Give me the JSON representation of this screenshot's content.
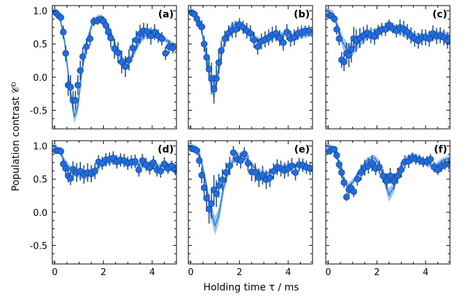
{
  "figure": {
    "ylabel": "Population contrast 𝒞ᴰ",
    "xlabel": "Holding time τ / ms",
    "colors": {
      "marker": "#1e6ee6",
      "marker_edge": "#1b4f9c",
      "errorbar": "#1f4e8f",
      "band": "#8fb6f2",
      "fit": "#2a7de1"
    },
    "yticks": [
      "1.0",
      "0.5",
      "0.0",
      "-0.5"
    ],
    "xticks": [
      "0",
      "2",
      "4"
    ]
  },
  "chart_data": [
    {
      "type": "scatter",
      "panel": "(a)",
      "xlim": [
        -0.1,
        5.0
      ],
      "ylim": [
        -0.78,
        1.08
      ],
      "x": [
        0.05,
        0.15,
        0.25,
        0.35,
        0.45,
        0.55,
        0.65,
        0.75,
        0.85,
        0.95,
        1.05,
        1.15,
        1.3,
        1.45,
        1.6,
        1.75,
        1.9,
        2.0,
        2.1,
        2.2,
        2.3,
        2.45,
        2.6,
        2.75,
        2.9,
        3.05,
        3.2,
        3.35,
        3.5,
        3.65,
        3.8,
        3.95,
        4.1,
        4.25,
        4.4,
        4.55,
        4.7,
        4.85
      ],
      "y": [
        0.97,
        0.93,
        0.9,
        0.68,
        0.36,
        -0.12,
        -0.15,
        -0.35,
        -0.35,
        -0.12,
        0.1,
        0.31,
        0.46,
        0.58,
        0.84,
        0.85,
        0.87,
        0.84,
        0.78,
        0.68,
        0.59,
        0.43,
        0.37,
        0.23,
        0.16,
        0.26,
        0.44,
        0.56,
        0.65,
        0.7,
        0.69,
        0.62,
        0.68,
        0.62,
        0.58,
        0.36,
        0.46,
        0.44
      ],
      "err": [
        0.05,
        0.05,
        0.06,
        0.1,
        0.12,
        0.16,
        0.18,
        0.14,
        0.14,
        0.15,
        0.15,
        0.14,
        0.12,
        0.1,
        0.07,
        0.06,
        0.06,
        0.07,
        0.1,
        0.12,
        0.14,
        0.15,
        0.16,
        0.17,
        0.16,
        0.16,
        0.15,
        0.14,
        0.14,
        0.12,
        0.12,
        0.13,
        0.12,
        0.1,
        0.1,
        0.1,
        0.1,
        0.08
      ],
      "fit": [
        [
          0,
          1.0
        ],
        [
          0.2,
          0.92
        ],
        [
          0.4,
          0.55
        ],
        [
          0.6,
          -0.1
        ],
        [
          0.8,
          -0.6
        ],
        [
          0.95,
          -0.45
        ],
        [
          1.1,
          0.05
        ],
        [
          1.3,
          0.5
        ],
        [
          1.55,
          0.82
        ],
        [
          1.8,
          0.91
        ],
        [
          2.05,
          0.87
        ],
        [
          2.3,
          0.68
        ],
        [
          2.55,
          0.42
        ],
        [
          2.8,
          0.24
        ],
        [
          3.0,
          0.22
        ],
        [
          3.25,
          0.36
        ],
        [
          3.5,
          0.55
        ],
        [
          3.8,
          0.66
        ],
        [
          4.1,
          0.67
        ],
        [
          4.4,
          0.61
        ],
        [
          4.7,
          0.52
        ],
        [
          5.0,
          0.46
        ]
      ],
      "band": [
        [
          0,
          0.04
        ],
        [
          0.4,
          0.07
        ],
        [
          0.6,
          0.1
        ],
        [
          0.8,
          0.1
        ],
        [
          1.0,
          0.09
        ],
        [
          1.3,
          0.07
        ],
        [
          1.8,
          0.04
        ],
        [
          2.3,
          0.05
        ],
        [
          2.8,
          0.06
        ],
        [
          3.5,
          0.05
        ],
        [
          5.0,
          0.04
        ]
      ]
    },
    {
      "type": "scatter",
      "panel": "(b)",
      "xlim": [
        -0.1,
        5.0
      ],
      "ylim": [
        -0.78,
        1.08
      ],
      "x": [
        0.05,
        0.15,
        0.25,
        0.35,
        0.45,
        0.55,
        0.65,
        0.75,
        0.85,
        0.95,
        1.05,
        1.15,
        1.25,
        1.4,
        1.55,
        1.7,
        1.85,
        2.0,
        2.15,
        2.3,
        2.45,
        2.6,
        2.75,
        2.9,
        3.05,
        3.2,
        3.35,
        3.5,
        3.65,
        3.8,
        3.95,
        4.1,
        4.25,
        4.4,
        4.55,
        4.7,
        4.85
      ],
      "y": [
        0.97,
        0.95,
        0.88,
        0.8,
        0.76,
        0.5,
        0.3,
        0.12,
        -0.02,
        -0.18,
        -0.02,
        0.22,
        0.4,
        0.58,
        0.66,
        0.71,
        0.72,
        0.79,
        0.75,
        0.7,
        0.66,
        0.56,
        0.46,
        0.54,
        0.57,
        0.6,
        0.64,
        0.66,
        0.59,
        0.52,
        0.68,
        0.58,
        0.6,
        0.66,
        0.68,
        0.7,
        0.7
      ],
      "err": [
        0.05,
        0.05,
        0.07,
        0.08,
        0.1,
        0.12,
        0.15,
        0.18,
        0.24,
        0.22,
        0.2,
        0.17,
        0.15,
        0.12,
        0.12,
        0.12,
        0.12,
        0.1,
        0.1,
        0.12,
        0.12,
        0.12,
        0.12,
        0.12,
        0.12,
        0.12,
        0.12,
        0.12,
        0.12,
        0.12,
        0.12,
        0.12,
        0.12,
        0.1,
        0.1,
        0.08,
        0.08
      ],
      "fit": [
        [
          0,
          0.99
        ],
        [
          0.2,
          0.95
        ],
        [
          0.4,
          0.78
        ],
        [
          0.6,
          0.42
        ],
        [
          0.8,
          -0.05
        ],
        [
          0.95,
          -0.22
        ],
        [
          1.1,
          0.02
        ],
        [
          1.3,
          0.42
        ],
        [
          1.55,
          0.7
        ],
        [
          1.8,
          0.8
        ],
        [
          2.05,
          0.8
        ],
        [
          2.3,
          0.72
        ],
        [
          2.6,
          0.6
        ],
        [
          2.9,
          0.54
        ],
        [
          3.2,
          0.56
        ],
        [
          3.5,
          0.62
        ],
        [
          3.8,
          0.65
        ],
        [
          4.1,
          0.64
        ],
        [
          4.4,
          0.62
        ],
        [
          4.7,
          0.63
        ],
        [
          5.0,
          0.66
        ]
      ],
      "band": [
        [
          0,
          0.04
        ],
        [
          0.4,
          0.06
        ],
        [
          0.7,
          0.1
        ],
        [
          0.95,
          0.13
        ],
        [
          1.2,
          0.1
        ],
        [
          1.6,
          0.06
        ],
        [
          2.2,
          0.04
        ],
        [
          3.0,
          0.04
        ],
        [
          5.0,
          0.04
        ]
      ]
    },
    {
      "type": "scatter",
      "panel": "(c)",
      "xlim": [
        -0.1,
        5.0
      ],
      "ylim": [
        -0.78,
        1.08
      ],
      "x": [
        0.05,
        0.15,
        0.25,
        0.35,
        0.45,
        0.55,
        0.65,
        0.75,
        0.85,
        0.95,
        1.05,
        1.15,
        1.3,
        1.45,
        1.6,
        1.75,
        1.9,
        2.05,
        2.2,
        2.35,
        2.5,
        2.65,
        2.8,
        2.95,
        3.1,
        3.25,
        3.4,
        3.55,
        3.7,
        3.85,
        4.0,
        4.15,
        4.3,
        4.45,
        4.6,
        4.75,
        4.9
      ],
      "y": [
        0.93,
        0.92,
        0.88,
        0.72,
        0.58,
        0.26,
        0.23,
        0.36,
        0.33,
        0.42,
        0.58,
        0.55,
        0.59,
        0.63,
        0.67,
        0.63,
        0.61,
        0.68,
        0.72,
        0.72,
        0.79,
        0.74,
        0.7,
        0.75,
        0.73,
        0.68,
        0.63,
        0.58,
        0.55,
        0.6,
        0.6,
        0.58,
        0.66,
        0.62,
        0.63,
        0.6,
        0.55
      ],
      "err": [
        0.05,
        0.05,
        0.06,
        0.08,
        0.1,
        0.12,
        0.14,
        0.16,
        0.18,
        0.2,
        0.18,
        0.17,
        0.15,
        0.13,
        0.12,
        0.12,
        0.12,
        0.11,
        0.1,
        0.1,
        0.08,
        0.08,
        0.1,
        0.12,
        0.12,
        0.12,
        0.12,
        0.12,
        0.12,
        0.12,
        0.12,
        0.12,
        0.12,
        0.12,
        0.12,
        0.12,
        0.12
      ],
      "fit": [
        [
          0,
          1.0
        ],
        [
          0.2,
          0.95
        ],
        [
          0.4,
          0.75
        ],
        [
          0.6,
          0.52
        ],
        [
          0.8,
          0.4
        ],
        [
          1.0,
          0.42
        ],
        [
          1.25,
          0.52
        ],
        [
          1.5,
          0.6
        ],
        [
          1.8,
          0.66
        ],
        [
          2.1,
          0.71
        ],
        [
          2.4,
          0.74
        ],
        [
          2.7,
          0.73
        ],
        [
          3.0,
          0.68
        ],
        [
          3.3,
          0.63
        ],
        [
          3.6,
          0.6
        ],
        [
          3.9,
          0.6
        ],
        [
          4.2,
          0.62
        ],
        [
          4.5,
          0.63
        ],
        [
          4.8,
          0.62
        ],
        [
          5.0,
          0.61
        ]
      ],
      "band": [
        [
          0,
          0.04
        ],
        [
          0.5,
          0.08
        ],
        [
          0.8,
          0.11
        ],
        [
          1.1,
          0.09
        ],
        [
          1.6,
          0.06
        ],
        [
          2.5,
          0.05
        ],
        [
          3.5,
          0.06
        ],
        [
          5.0,
          0.07
        ]
      ]
    },
    {
      "type": "scatter",
      "panel": "(d)",
      "xlim": [
        -0.1,
        5.0
      ],
      "ylim": [
        -0.78,
        1.08
      ],
      "x": [
        0.05,
        0.15,
        0.25,
        0.35,
        0.45,
        0.55,
        0.65,
        0.75,
        0.9,
        1.05,
        1.2,
        1.35,
        1.5,
        1.65,
        1.8,
        1.95,
        2.1,
        2.25,
        2.4,
        2.55,
        2.7,
        2.85,
        3.0,
        3.15,
        3.3,
        3.45,
        3.6,
        3.75,
        3.9,
        4.05,
        4.2,
        4.35,
        4.5,
        4.65,
        4.8,
        4.95
      ],
      "y": [
        0.93,
        0.93,
        0.92,
        0.73,
        0.66,
        0.55,
        0.51,
        0.65,
        0.6,
        0.62,
        0.57,
        0.6,
        0.58,
        0.62,
        0.76,
        0.74,
        0.79,
        0.8,
        0.82,
        0.76,
        0.79,
        0.78,
        0.74,
        0.76,
        0.77,
        0.64,
        0.78,
        0.72,
        0.67,
        0.75,
        0.64,
        0.62,
        0.73,
        0.66,
        0.7,
        0.64
      ],
      "err": [
        0.04,
        0.04,
        0.06,
        0.08,
        0.1,
        0.1,
        0.1,
        0.12,
        0.14,
        0.14,
        0.14,
        0.14,
        0.13,
        0.12,
        0.1,
        0.1,
        0.1,
        0.1,
        0.1,
        0.1,
        0.1,
        0.1,
        0.1,
        0.1,
        0.1,
        0.1,
        0.1,
        0.1,
        0.1,
        0.1,
        0.1,
        0.1,
        0.1,
        0.08,
        0.08,
        0.08
      ],
      "fit": [
        [
          0,
          1.0
        ],
        [
          0.2,
          0.93
        ],
        [
          0.4,
          0.76
        ],
        [
          0.7,
          0.62
        ],
        [
          1.0,
          0.58
        ],
        [
          1.3,
          0.56
        ],
        [
          1.6,
          0.62
        ],
        [
          1.9,
          0.72
        ],
        [
          2.2,
          0.76
        ],
        [
          2.5,
          0.77
        ],
        [
          2.8,
          0.76
        ],
        [
          3.1,
          0.74
        ],
        [
          3.4,
          0.72
        ],
        [
          3.7,
          0.7
        ],
        [
          4.0,
          0.7
        ],
        [
          4.3,
          0.69
        ],
        [
          4.6,
          0.69
        ],
        [
          5.0,
          0.69
        ]
      ],
      "band": [
        [
          0,
          0.04
        ],
        [
          0.6,
          0.06
        ],
        [
          1.3,
          0.07
        ],
        [
          2.0,
          0.04
        ],
        [
          5.0,
          0.04
        ]
      ]
    },
    {
      "type": "scatter",
      "panel": "(e)",
      "xlim": [
        -0.1,
        5.0
      ],
      "ylim": [
        -0.78,
        1.08
      ],
      "x": [
        0.05,
        0.15,
        0.25,
        0.35,
        0.45,
        0.55,
        0.65,
        0.75,
        0.85,
        0.95,
        1.05,
        1.15,
        1.3,
        1.45,
        1.6,
        1.75,
        1.9,
        2.05,
        2.2,
        2.35,
        2.5,
        2.65,
        2.8,
        2.95,
        3.1,
        3.25,
        3.4,
        3.55,
        3.7,
        3.85,
        4.0,
        4.15,
        4.3,
        4.45,
        4.6,
        4.75,
        4.9
      ],
      "y": [
        0.96,
        0.95,
        0.93,
        0.78,
        0.56,
        0.37,
        0.21,
        0.05,
        0.13,
        0.34,
        0.28,
        0.4,
        0.49,
        0.6,
        0.7,
        0.9,
        0.8,
        0.78,
        0.88,
        0.74,
        0.61,
        0.6,
        0.52,
        0.56,
        0.49,
        0.52,
        0.62,
        0.68,
        0.66,
        0.63,
        0.66,
        0.7,
        0.6,
        0.72,
        0.71,
        0.68,
        0.66
      ],
      "err": [
        0.05,
        0.05,
        0.06,
        0.1,
        0.12,
        0.16,
        0.2,
        0.22,
        0.22,
        0.22,
        0.2,
        0.18,
        0.16,
        0.15,
        0.14,
        0.1,
        0.1,
        0.12,
        0.1,
        0.12,
        0.14,
        0.14,
        0.14,
        0.14,
        0.14,
        0.14,
        0.12,
        0.12,
        0.12,
        0.12,
        0.12,
        0.12,
        0.12,
        0.1,
        0.1,
        0.1,
        0.1
      ],
      "fit": [
        [
          0,
          1.0
        ],
        [
          0.2,
          0.96
        ],
        [
          0.4,
          0.82
        ],
        [
          0.6,
          0.48
        ],
        [
          0.8,
          0.05
        ],
        [
          1.0,
          -0.2
        ],
        [
          1.15,
          -0.05
        ],
        [
          1.35,
          0.38
        ],
        [
          1.6,
          0.7
        ],
        [
          1.9,
          0.85
        ],
        [
          2.2,
          0.84
        ],
        [
          2.5,
          0.72
        ],
        [
          2.8,
          0.6
        ],
        [
          3.1,
          0.58
        ],
        [
          3.4,
          0.62
        ],
        [
          3.7,
          0.67
        ],
        [
          4.0,
          0.7
        ],
        [
          4.3,
          0.7
        ],
        [
          4.6,
          0.68
        ],
        [
          5.0,
          0.67
        ]
      ],
      "band": [
        [
          0,
          0.04
        ],
        [
          0.5,
          0.07
        ],
        [
          0.8,
          0.12
        ],
        [
          1.0,
          0.14
        ],
        [
          1.3,
          0.1
        ],
        [
          1.7,
          0.06
        ],
        [
          2.4,
          0.04
        ],
        [
          5.0,
          0.04
        ]
      ]
    },
    {
      "type": "scatter",
      "panel": "(f)",
      "xlim": [
        -0.1,
        5.0
      ],
      "ylim": [
        -0.78,
        1.08
      ],
      "x": [
        0.05,
        0.15,
        0.25,
        0.35,
        0.45,
        0.55,
        0.65,
        0.75,
        0.85,
        0.95,
        1.05,
        1.2,
        1.35,
        1.5,
        1.65,
        1.8,
        1.95,
        2.1,
        2.25,
        2.4,
        2.55,
        2.7,
        2.85,
        3.0,
        3.15,
        3.3,
        3.45,
        3.6,
        3.75,
        3.9,
        4.05,
        4.2,
        4.35,
        4.5,
        4.65,
        4.8,
        4.95
      ],
      "y": [
        0.92,
        0.95,
        0.95,
        0.86,
        0.72,
        0.6,
        0.45,
        0.23,
        0.34,
        0.36,
        0.31,
        0.5,
        0.6,
        0.67,
        0.7,
        0.74,
        0.66,
        0.68,
        0.55,
        0.47,
        0.55,
        0.47,
        0.55,
        0.64,
        0.76,
        0.77,
        0.82,
        0.8,
        0.79,
        0.76,
        0.77,
        0.8,
        0.68,
        0.64,
        0.69,
        0.72,
        0.73
      ],
      "err": [
        0.04,
        0.04,
        0.05,
        0.06,
        0.07,
        0.08,
        0.08,
        0.06,
        0.08,
        0.08,
        0.08,
        0.1,
        0.12,
        0.12,
        0.12,
        0.12,
        0.1,
        0.1,
        0.1,
        0.12,
        0.12,
        0.12,
        0.12,
        0.12,
        0.1,
        0.1,
        0.08,
        0.08,
        0.08,
        0.08,
        0.08,
        0.08,
        0.08,
        0.08,
        0.08,
        0.08,
        0.08
      ],
      "fit": [
        [
          0,
          1.0
        ],
        [
          0.2,
          0.96
        ],
        [
          0.4,
          0.8
        ],
        [
          0.6,
          0.52
        ],
        [
          0.8,
          0.38
        ],
        [
          1.0,
          0.45
        ],
        [
          1.3,
          0.62
        ],
        [
          1.6,
          0.78
        ],
        [
          1.9,
          0.82
        ],
        [
          2.1,
          0.72
        ],
        [
          2.3,
          0.5
        ],
        [
          2.5,
          0.26
        ],
        [
          2.7,
          0.38
        ],
        [
          2.9,
          0.62
        ],
        [
          3.2,
          0.8
        ],
        [
          3.5,
          0.86
        ],
        [
          3.8,
          0.8
        ],
        [
          4.1,
          0.72
        ],
        [
          4.4,
          0.7
        ],
        [
          4.7,
          0.78
        ],
        [
          5.0,
          0.82
        ]
      ],
      "band": [
        [
          0,
          0.04
        ],
        [
          0.6,
          0.06
        ],
        [
          1.0,
          0.05
        ],
        [
          1.9,
          0.05
        ],
        [
          2.3,
          0.08
        ],
        [
          2.5,
          0.1
        ],
        [
          2.8,
          0.07
        ],
        [
          3.3,
          0.04
        ],
        [
          5.0,
          0.04
        ]
      ]
    }
  ]
}
